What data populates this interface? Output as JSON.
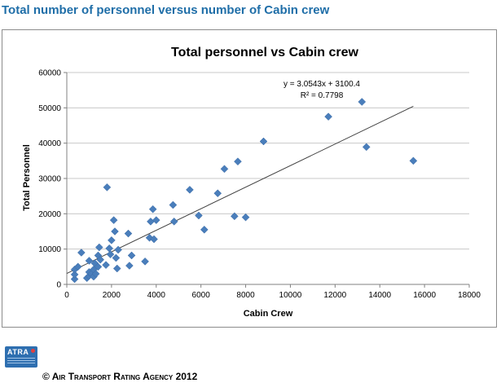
{
  "page": {
    "heading": "Total number of personnel versus number of Cabin crew",
    "logo_text": "ATRA",
    "copyright": "© Air Transport Rating Agency 2012"
  },
  "colors": {
    "heading": "#1f6ea8",
    "marker": "#4a7ebb",
    "trendline": "#404040",
    "gridline": "#c8c8c8"
  },
  "chart_data": {
    "type": "scatter",
    "title": "Total personnel vs Cabin crew",
    "xlabel": "Cabin Crew",
    "ylabel": "Total Personnel",
    "xlim": [
      0,
      18000
    ],
    "ylim": [
      0,
      60000
    ],
    "xticks": [
      0,
      2000,
      4000,
      6000,
      8000,
      10000,
      12000,
      14000,
      16000,
      18000
    ],
    "yticks": [
      0,
      10000,
      20000,
      30000,
      40000,
      50000,
      60000
    ],
    "grid": "horizontal",
    "legend": "none",
    "marker": "diamond",
    "trendline": {
      "slope": 3.0543,
      "intercept": 3100.4,
      "x_range": [
        0,
        15500
      ],
      "equation": "y = 3.0543x + 3100.4",
      "r2_label": "R² = 0.7798"
    },
    "points": [
      [
        350,
        1500
      ],
      [
        350,
        2800
      ],
      [
        350,
        4200
      ],
      [
        500,
        5000
      ],
      [
        650,
        9000
      ],
      [
        900,
        1800
      ],
      [
        1000,
        2400
      ],
      [
        1000,
        3500
      ],
      [
        1000,
        6700
      ],
      [
        1100,
        3000
      ],
      [
        1200,
        2200
      ],
      [
        1200,
        4200
      ],
      [
        1250,
        6000
      ],
      [
        1300,
        3000
      ],
      [
        1400,
        5000
      ],
      [
        1400,
        8200
      ],
      [
        1450,
        10500
      ],
      [
        1500,
        7000
      ],
      [
        1750,
        5500
      ],
      [
        1800,
        27500
      ],
      [
        1900,
        10200
      ],
      [
        1950,
        8500
      ],
      [
        2000,
        12500
      ],
      [
        2100,
        18200
      ],
      [
        2150,
        15000
      ],
      [
        2200,
        7500
      ],
      [
        2250,
        4500
      ],
      [
        2300,
        9800
      ],
      [
        2750,
        14400
      ],
      [
        2800,
        5300
      ],
      [
        2900,
        8200
      ],
      [
        3500,
        6500
      ],
      [
        3700,
        13200
      ],
      [
        3750,
        17800
      ],
      [
        3850,
        21300
      ],
      [
        3900,
        12800
      ],
      [
        4000,
        18200
      ],
      [
        4750,
        22500
      ],
      [
        4800,
        17800
      ],
      [
        5500,
        26800
      ],
      [
        5900,
        19500
      ],
      [
        6150,
        15500
      ],
      [
        6750,
        25800
      ],
      [
        7050,
        32700
      ],
      [
        7500,
        19300
      ],
      [
        7650,
        34800
      ],
      [
        8000,
        19000
      ],
      [
        8800,
        40500
      ],
      [
        11700,
        47500
      ],
      [
        13200,
        51700
      ],
      [
        13400,
        38900
      ],
      [
        15500,
        35000
      ]
    ]
  }
}
